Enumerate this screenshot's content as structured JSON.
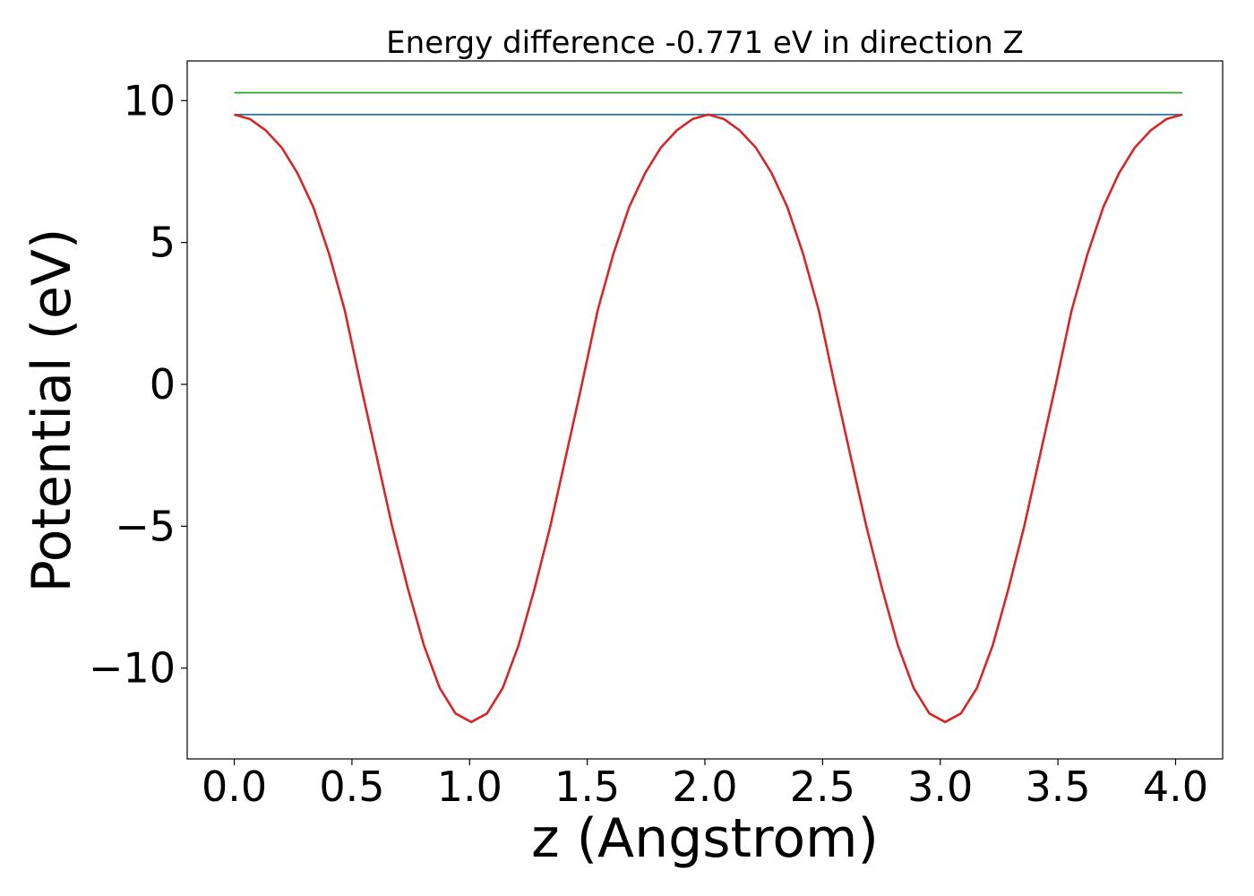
{
  "chart_data": {
    "type": "line",
    "title": "Energy difference -0.771 eV in direction Z",
    "xlabel": "z (Angstrom)",
    "ylabel": "Potential (eV)",
    "xlim": [
      -0.2,
      4.2
    ],
    "ylim": [
      -13.2,
      11.4
    ],
    "grid": false,
    "legend": false,
    "x_ticks": [
      0.0,
      0.5,
      1.0,
      1.5,
      2.0,
      2.5,
      3.0,
      3.5,
      4.0
    ],
    "x_tick_labels": [
      "0.0",
      "0.5",
      "1.0",
      "1.5",
      "2.0",
      "2.5",
      "3.0",
      "3.5",
      "4.0"
    ],
    "y_ticks": [
      -10,
      -5,
      0,
      5,
      10
    ],
    "y_tick_labels": [
      "−10",
      "−5",
      "0",
      "5",
      "10"
    ],
    "series": [
      {
        "color": "#2ca02c",
        "x": [
          0.0,
          4.03
        ],
        "y": [
          10.28,
          10.28
        ]
      },
      {
        "color": "#1f77b4",
        "x": [
          0.0,
          4.03
        ],
        "y": [
          9.51,
          9.51
        ]
      },
      {
        "color": "#d62728",
        "x": [
          0.0,
          0.067,
          0.134,
          0.201,
          0.268,
          0.336,
          0.403,
          0.47,
          0.537,
          0.604,
          0.671,
          0.738,
          0.806,
          0.873,
          0.94,
          1.007,
          1.074,
          1.141,
          1.208,
          1.276,
          1.343,
          1.41,
          1.477,
          1.544,
          1.611,
          1.678,
          1.746,
          1.813,
          1.88,
          1.947,
          2.014,
          2.081,
          2.148,
          2.216,
          2.283,
          2.35,
          2.417,
          2.484,
          2.551,
          2.618,
          2.686,
          2.753,
          2.82,
          2.887,
          2.954,
          3.021,
          3.088,
          3.156,
          3.223,
          3.29,
          3.357,
          3.424,
          3.491,
          3.558,
          3.626,
          3.693,
          3.76,
          3.827,
          3.894,
          3.961,
          4.028
        ],
        "y": [
          9.51,
          9.35,
          8.95,
          8.35,
          7.45,
          6.25,
          4.6,
          2.6,
          0.0,
          -2.5,
          -5.0,
          -7.2,
          -9.2,
          -10.7,
          -11.6,
          -11.9,
          -11.6,
          -10.7,
          -9.2,
          -7.2,
          -5.0,
          -2.5,
          0.0,
          2.6,
          4.6,
          6.25,
          7.45,
          8.35,
          8.95,
          9.35,
          9.51,
          9.35,
          8.95,
          8.35,
          7.45,
          6.25,
          4.6,
          2.6,
          0.0,
          -2.5,
          -5.0,
          -7.2,
          -9.2,
          -10.7,
          -11.6,
          -11.9,
          -11.6,
          -10.7,
          -9.2,
          -7.2,
          -5.0,
          -2.5,
          0.0,
          2.6,
          4.6,
          6.25,
          7.45,
          8.35,
          8.95,
          9.35,
          9.51
        ]
      }
    ]
  }
}
